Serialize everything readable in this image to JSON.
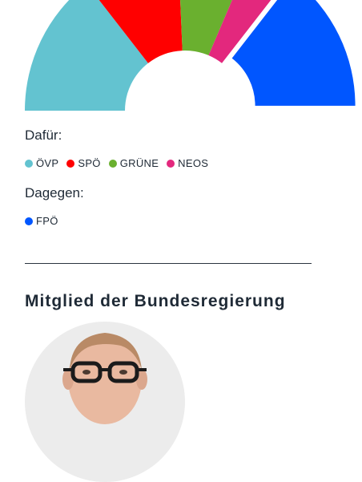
{
  "chart_data": {
    "type": "pie",
    "subtype": "semicircle-parliament",
    "segments": [
      {
        "party": "ÖVP",
        "share": 0.2896,
        "color": "#63c3d0",
        "vote": "for"
      },
      {
        "party": "SPÖ",
        "share": 0.1967,
        "color": "#ff0000",
        "vote": "for"
      },
      {
        "party": "GRÜNE",
        "share": 0.1421,
        "color": "#6ab02f",
        "vote": "for"
      },
      {
        "party": "NEOS",
        "share": 0.082,
        "color": "#e3287d",
        "vote": "for"
      },
      {
        "party": "FPÖ",
        "share": 0.2896,
        "color": "#0056ff",
        "vote": "against"
      }
    ],
    "exploded": [
      "FPÖ"
    ]
  },
  "votes": {
    "for_label": "Dafür:",
    "against_label": "Dagegen:",
    "for_parties": [
      {
        "name": "ÖVP",
        "color": "#63c3d0"
      },
      {
        "name": "SPÖ",
        "color": "#ff0000"
      },
      {
        "name": "GRÜNE",
        "color": "#6ab02f"
      },
      {
        "name": "NEOS",
        "color": "#e3287d"
      }
    ],
    "against_parties": [
      {
        "name": "FPÖ",
        "color": "#0056ff"
      }
    ]
  },
  "government": {
    "title": "Mitglied der Bundesregierung",
    "portrait_icon": "person-portrait-icon"
  }
}
